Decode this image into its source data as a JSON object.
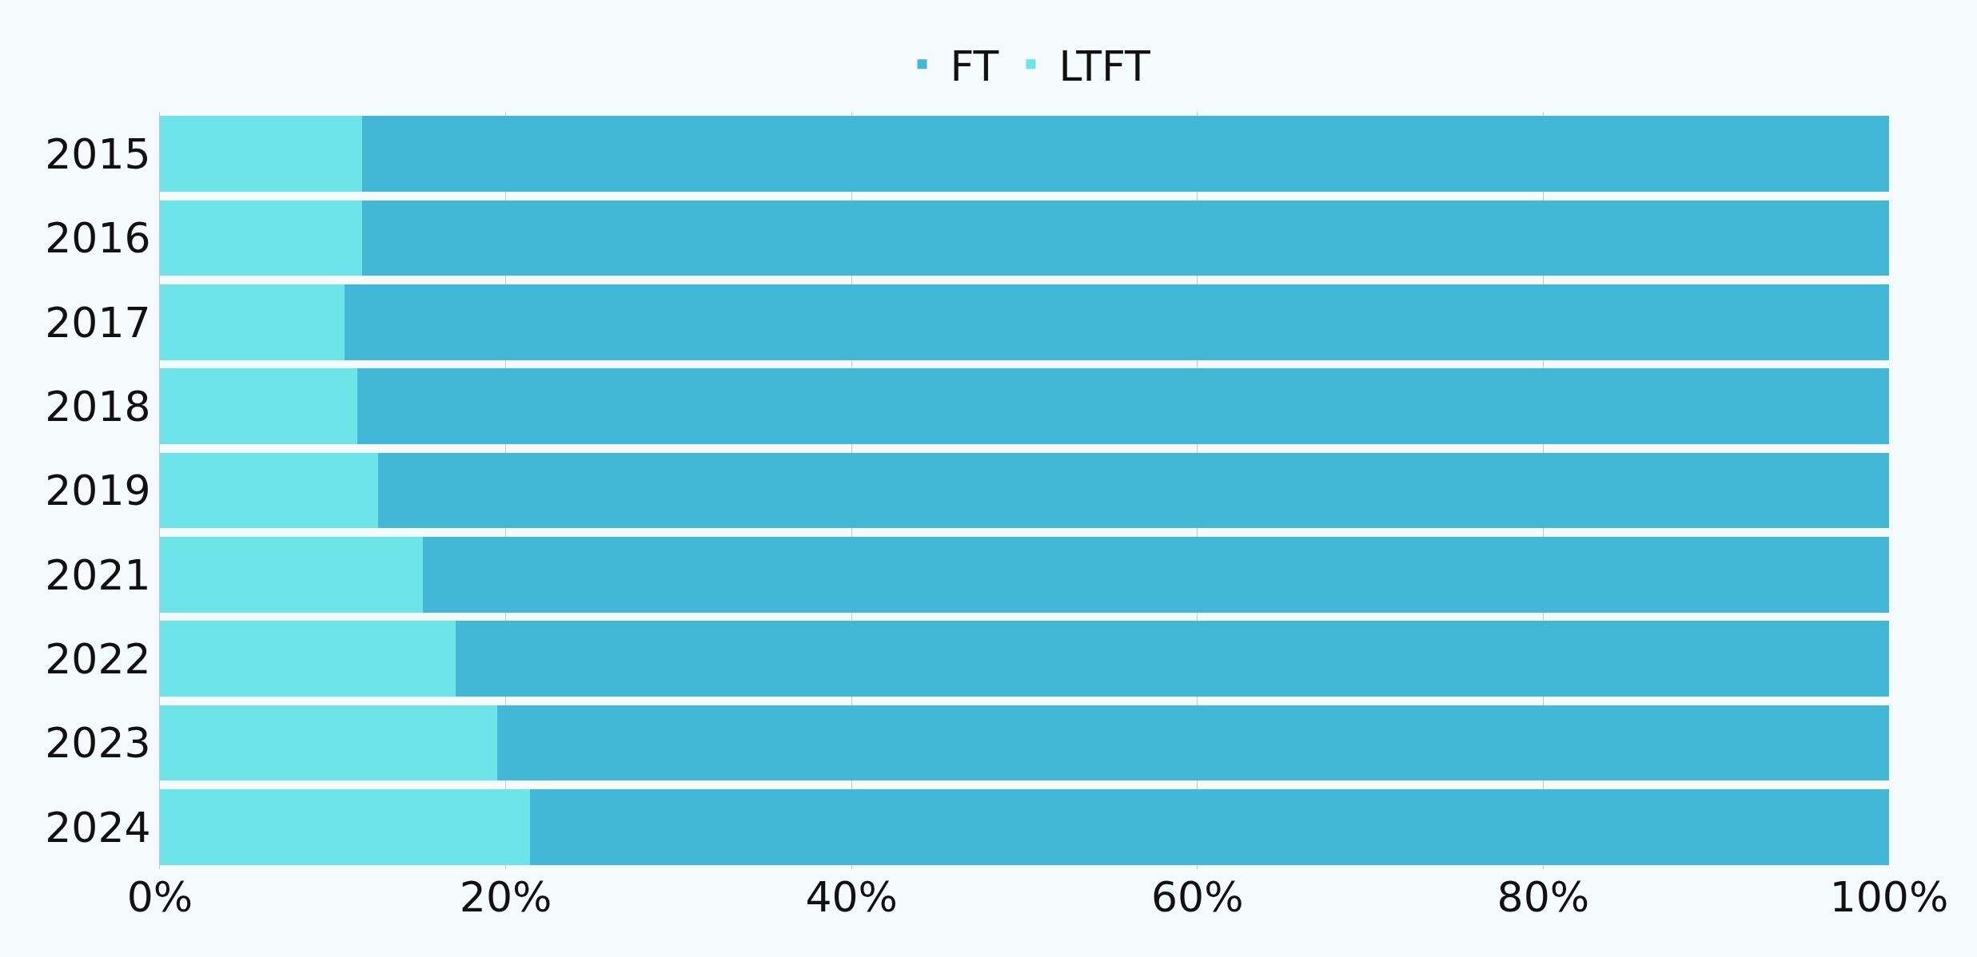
{
  "chart_data": {
    "type": "bar",
    "orientation": "horizontal",
    "stacked": true,
    "categories": [
      "2015",
      "2016",
      "2017",
      "2018",
      "2019",
      "2021",
      "2022",
      "2023",
      "2024"
    ],
    "series": [
      {
        "name": "LTFT",
        "color": "#6ce4e8",
        "values": [
          11.7,
          11.7,
          10.7,
          11.4,
          12.6,
          15.2,
          17.1,
          19.5,
          21.4
        ]
      },
      {
        "name": "FT",
        "color": "#42b7d6",
        "values": [
          88.3,
          88.3,
          89.3,
          88.6,
          87.4,
          84.8,
          82.9,
          80.5,
          78.6
        ]
      }
    ],
    "xlim": [
      0,
      100
    ],
    "xticks": [
      {
        "value": 0,
        "label": "0%"
      },
      {
        "value": 20,
        "label": "20%"
      },
      {
        "value": 40,
        "label": "40%"
      },
      {
        "value": 60,
        "label": "60%"
      },
      {
        "value": 80,
        "label": "80%"
      },
      {
        "value": 100,
        "label": "100%"
      }
    ],
    "grid": "x",
    "legend": "top"
  }
}
